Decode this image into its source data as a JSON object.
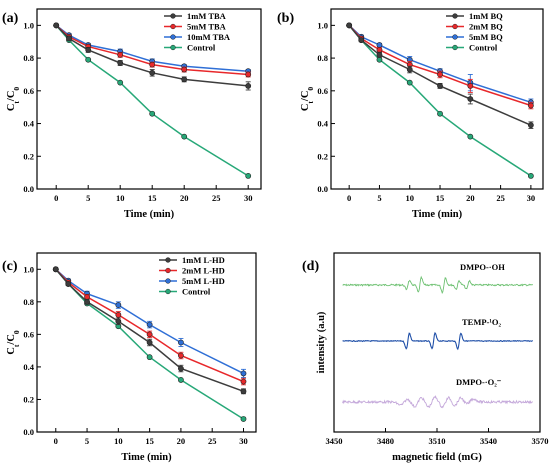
{
  "chart_data": [
    {
      "type": "line",
      "panel": "(a)",
      "xlabel": "Time (min)",
      "ylabel": "Ct/C0",
      "xlim": [
        -3,
        32
      ],
      "ylim": [
        0,
        1.1
      ],
      "xticks": [
        0,
        5,
        10,
        15,
        20,
        25,
        30
      ],
      "yticks": [
        0.0,
        0.2,
        0.4,
        0.6,
        0.8,
        1.0
      ],
      "tick_labels_y": [
        "0.0",
        "0.2",
        "0.4",
        "0.6",
        "0.8",
        "1.0"
      ],
      "legend_position": "top-right",
      "x": [
        0,
        2,
        5,
        10,
        15,
        20,
        30
      ],
      "series": [
        {
          "name": "1mM TBA",
          "color": "#3d3d3d",
          "values": [
            1.0,
            0.92,
            0.85,
            0.77,
            0.71,
            0.67,
            0.63
          ],
          "errors": [
            0,
            0.01,
            0.015,
            0.015,
            0.02,
            0.015,
            0.025
          ]
        },
        {
          "name": "5mM TBA",
          "color": "#e8282b",
          "values": [
            1.0,
            0.93,
            0.87,
            0.82,
            0.76,
            0.73,
            0.7
          ],
          "errors": [
            0,
            0.01,
            0.01,
            0.015,
            0.015,
            0.015,
            0.015
          ]
        },
        {
          "name": "10mM TBA",
          "color": "#2f6fd6",
          "values": [
            1.0,
            0.94,
            0.88,
            0.84,
            0.78,
            0.75,
            0.72
          ],
          "errors": [
            0,
            0.01,
            0.01,
            0.015,
            0.015,
            0.01,
            0.01
          ]
        },
        {
          "name": "Control",
          "color": "#27a878",
          "values": [
            1.0,
            0.91,
            0.79,
            0.65,
            0.46,
            0.32,
            0.08
          ],
          "errors": [
            0,
            0,
            0,
            0,
            0,
            0,
            0
          ]
        }
      ]
    },
    {
      "type": "line",
      "panel": "(b)",
      "xlabel": "Time (min)",
      "ylabel": "Ct/C0",
      "xlim": [
        -3,
        32
      ],
      "ylim": [
        0,
        1.1
      ],
      "xticks": [
        0,
        5,
        10,
        15,
        20,
        25,
        30
      ],
      "yticks": [
        0.0,
        0.2,
        0.4,
        0.6,
        0.8,
        1.0
      ],
      "tick_labels_y": [
        "0.0",
        "0.2",
        "0.4",
        "0.6",
        "0.8",
        "1.0"
      ],
      "legend_position": "top-right",
      "x": [
        0,
        2,
        5,
        10,
        15,
        20,
        30
      ],
      "series": [
        {
          "name": "1mM BQ",
          "color": "#3d3d3d",
          "values": [
            1.0,
            0.91,
            0.82,
            0.73,
            0.63,
            0.55,
            0.39
          ],
          "errors": [
            0,
            0.01,
            0.015,
            0.02,
            0.015,
            0.03,
            0.02
          ]
        },
        {
          "name": "2mM BQ",
          "color": "#e8282b",
          "values": [
            1.0,
            0.92,
            0.85,
            0.76,
            0.7,
            0.63,
            0.51
          ],
          "errors": [
            0,
            0.01,
            0.015,
            0.02,
            0.02,
            0.04,
            0.02
          ]
        },
        {
          "name": "5mM BQ",
          "color": "#2f6fd6",
          "values": [
            1.0,
            0.93,
            0.88,
            0.79,
            0.72,
            0.65,
            0.53
          ],
          "errors": [
            0,
            0.01,
            0.01,
            0.02,
            0.015,
            0.05,
            0.02
          ]
        },
        {
          "name": "Control",
          "color": "#27a878",
          "values": [
            1.0,
            0.91,
            0.79,
            0.65,
            0.46,
            0.32,
            0.08
          ],
          "errors": [
            0,
            0,
            0,
            0,
            0,
            0,
            0
          ]
        }
      ]
    },
    {
      "type": "line",
      "panel": "(c)",
      "xlabel": "Time (min)",
      "ylabel": "Ct/C0",
      "xlim": [
        -3,
        32
      ],
      "ylim": [
        0,
        1.1
      ],
      "xticks": [
        0,
        5,
        10,
        15,
        20,
        25,
        30
      ],
      "yticks": [
        0.0,
        0.2,
        0.4,
        0.6,
        0.8,
        1.0
      ],
      "tick_labels_y": [
        "0.0",
        "0.2",
        "0.4",
        "0.6",
        "0.8",
        "1.0"
      ],
      "legend_position": "top-right",
      "x": [
        0,
        2,
        5,
        10,
        15,
        20,
        30
      ],
      "series": [
        {
          "name": "1mM L-HD",
          "color": "#3d3d3d",
          "values": [
            1.0,
            0.91,
            0.8,
            0.68,
            0.55,
            0.39,
            0.25
          ],
          "errors": [
            0,
            0.01,
            0.015,
            0.02,
            0.02,
            0.02,
            0.015
          ]
        },
        {
          "name": "2mM L-HD",
          "color": "#e8282b",
          "values": [
            1.0,
            0.92,
            0.83,
            0.72,
            0.6,
            0.47,
            0.31
          ],
          "errors": [
            0,
            0.01,
            0.015,
            0.02,
            0.02,
            0.02,
            0.02
          ]
        },
        {
          "name": "5mM L-HD",
          "color": "#2f6fd6",
          "values": [
            1.0,
            0.93,
            0.85,
            0.78,
            0.66,
            0.55,
            0.36
          ],
          "errors": [
            0,
            0.01,
            0.015,
            0.02,
            0.02,
            0.025,
            0.025
          ]
        },
        {
          "name": "Control",
          "color": "#27a878",
          "values": [
            1.0,
            0.91,
            0.79,
            0.65,
            0.46,
            0.32,
            0.08
          ],
          "errors": [
            0,
            0,
            0,
            0,
            0,
            0,
            0
          ]
        }
      ]
    },
    {
      "type": "line",
      "panel": "(d)",
      "xlabel": "magnetic field (mG)",
      "ylabel": "intensity (a.u)",
      "xlim": [
        3450,
        3570
      ],
      "xticks": [
        3450,
        3480,
        3510,
        3540,
        3570
      ],
      "tick_labels_x": [
        "3450",
        "3480",
        "3510",
        "3540",
        "3570"
      ],
      "series": [
        {
          "name": "DMPO-·OH",
          "color": "#6cc070",
          "label": "DMPO-·OH",
          "line_positions": [
            3493,
            3500,
            3514,
            3522,
            3528
          ]
        },
        {
          "name": "TEMP-1O2",
          "color": "#1f4fa8",
          "label": "TEMP-¹O₂",
          "line_positions": [
            3493,
            3508,
            3523
          ]
        },
        {
          "name": "DMPO-O2-",
          "color": "#c4a8da",
          "label": "DMPO-·O₂⁻",
          "line_positions": [
            3491,
            3499,
            3507,
            3515,
            3522,
            3529
          ]
        }
      ]
    }
  ],
  "labels": {
    "axis_ylabel_main": "C",
    "axis_ylabel_sub_t": "t",
    "axis_ylabel_slash": "/C",
    "axis_ylabel_sub_0": "0"
  }
}
